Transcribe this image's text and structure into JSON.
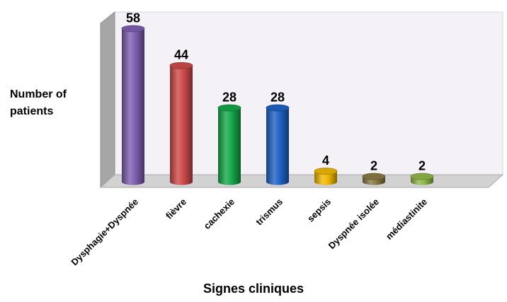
{
  "chart_data": {
    "type": "bar",
    "categories": [
      "Dysphagie+Dyspnée",
      "fièvre",
      "cachexie",
      "trismus",
      "sepsis",
      "Dyspnée isolée",
      "médiastinite"
    ],
    "values": [
      58,
      44,
      28,
      28,
      4,
      2,
      2
    ],
    "data_labels": [
      "58",
      "44",
      "28",
      "28",
      "4",
      "2",
      "2"
    ],
    "ylabel": "Number of patients",
    "xlabel": "Signes cliniques",
    "ylim": [
      0,
      60
    ],
    "grid": false,
    "legend": "none",
    "style": "3d-cylinder",
    "colors": [
      "#7e5fb0",
      "#cf4a4a",
      "#16a84a",
      "#1f63c6",
      "#f0b800",
      "#8a7a46",
      "#92b84a"
    ]
  }
}
